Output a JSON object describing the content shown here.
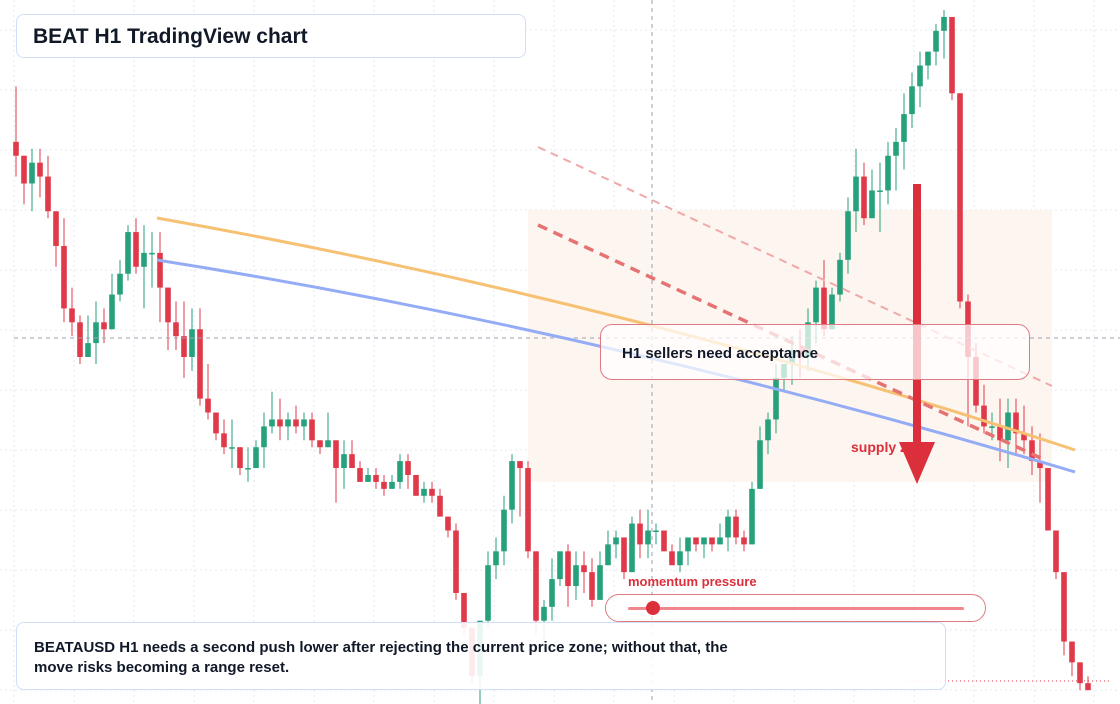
{
  "title": "BEAT H1 TradingView chart",
  "note": "BEATAUSD H1 needs a second push lower after rejecting the current price zone; without that, the move risks becoming a range reset.",
  "annotations": {
    "acceptance": "H1 sellers need acceptance",
    "supply": "supply zone",
    "momentum": "momentum pressure"
  },
  "momentum_level": 0.03,
  "colors": {
    "bull": "#26a17b",
    "bear": "#e03a4a",
    "ma_fast": "#f6c173",
    "ma_slow": "#94acf5",
    "alert": "#dc2f3c",
    "zone": "#fdf3ec",
    "grid": "#e3e7ef"
  },
  "icons": {
    "down_arrow": "arrow-down-icon"
  },
  "chart_data": {
    "type": "candlestick",
    "symbol": "BEATAUSD",
    "timeframe": "H1",
    "price_range": [
      0,
      100
    ],
    "candles": [
      [
        81,
        89,
        76,
        79
      ],
      [
        79,
        79,
        72,
        75
      ],
      [
        75,
        80,
        71,
        78
      ],
      [
        78,
        80,
        73,
        76
      ],
      [
        76,
        79,
        70,
        71
      ],
      [
        71,
        71,
        63,
        66
      ],
      [
        66,
        70,
        55,
        57
      ],
      [
        57,
        60,
        53,
        55
      ],
      [
        55,
        56,
        49,
        50
      ],
      [
        50,
        56,
        50,
        52
      ],
      [
        52,
        58,
        49,
        55
      ],
      [
        55,
        57,
        52,
        54
      ],
      [
        54,
        62,
        54,
        59
      ],
      [
        59,
        64,
        58,
        62
      ],
      [
        62,
        69,
        61,
        68
      ],
      [
        68,
        70,
        62,
        63
      ],
      [
        63,
        69,
        57,
        65
      ],
      [
        65,
        68,
        60,
        65
      ],
      [
        65,
        68,
        55,
        60
      ],
      [
        60,
        60,
        51,
        55
      ],
      [
        55,
        58,
        51,
        53
      ],
      [
        53,
        58,
        47,
        50
      ],
      [
        50,
        57,
        48,
        54
      ],
      [
        54,
        57,
        43,
        44
      ],
      [
        44,
        49,
        41,
        42
      ],
      [
        42,
        42,
        38,
        39
      ],
      [
        39,
        41,
        36,
        37
      ],
      [
        37,
        41,
        34,
        37
      ],
      [
        37,
        37,
        33,
        34
      ],
      [
        34,
        37,
        32,
        34
      ],
      [
        34,
        38,
        34,
        37
      ],
      [
        37,
        42,
        34,
        40
      ],
      [
        40,
        45,
        39,
        41
      ],
      [
        41,
        44,
        38,
        40
      ],
      [
        40,
        42,
        38,
        41
      ],
      [
        41,
        43,
        39,
        40
      ],
      [
        40,
        42,
        38,
        41
      ],
      [
        41,
        42,
        37,
        38
      ],
      [
        38,
        38,
        36,
        37
      ],
      [
        37,
        42,
        37,
        38
      ],
      [
        38,
        38,
        29,
        34
      ],
      [
        34,
        38,
        31,
        36
      ],
      [
        36,
        38,
        34,
        34
      ],
      [
        34,
        35,
        32,
        32
      ],
      [
        32,
        34,
        32,
        33
      ],
      [
        33,
        34,
        31,
        32
      ],
      [
        32,
        33,
        30,
        31
      ],
      [
        31,
        33,
        31,
        32
      ],
      [
        32,
        36,
        31,
        35
      ],
      [
        35,
        36,
        31,
        33
      ],
      [
        33,
        33,
        30,
        30
      ],
      [
        30,
        32,
        29,
        31
      ],
      [
        31,
        32,
        29,
        30
      ],
      [
        30,
        31,
        27,
        27
      ],
      [
        27,
        27,
        24,
        25
      ],
      [
        25,
        26,
        15,
        16
      ],
      [
        16,
        16,
        10,
        11
      ],
      [
        11,
        11,
        3,
        4
      ],
      [
        4,
        12,
        0,
        12
      ],
      [
        12,
        22,
        11,
        20
      ],
      [
        20,
        24,
        18,
        22
      ],
      [
        22,
        30,
        20,
        28
      ],
      [
        28,
        36,
        26,
        35
      ],
      [
        35,
        35,
        27,
        34
      ],
      [
        34,
        35,
        21,
        22
      ],
      [
        22,
        22,
        10,
        12
      ],
      [
        12,
        15,
        9,
        14
      ],
      [
        14,
        21,
        12,
        18
      ],
      [
        18,
        22,
        17,
        22
      ],
      [
        22,
        23,
        14,
        17
      ],
      [
        17,
        22,
        15,
        20
      ],
      [
        20,
        22,
        16,
        19
      ],
      [
        19,
        21,
        14,
        15
      ],
      [
        15,
        22,
        15,
        20
      ],
      [
        20,
        25,
        20,
        23
      ],
      [
        23,
        25,
        21,
        24
      ],
      [
        24,
        24,
        18,
        19
      ],
      [
        19,
        27,
        19,
        26
      ],
      [
        26,
        28,
        21,
        23
      ],
      [
        23,
        28,
        21,
        25
      ],
      [
        25,
        26,
        23,
        25
      ],
      [
        25,
        25,
        22,
        22
      ],
      [
        22,
        23,
        20,
        20
      ],
      [
        20,
        24,
        19,
        22
      ],
      [
        22,
        24,
        20,
        24
      ],
      [
        24,
        24,
        22,
        23
      ],
      [
        23,
        24,
        21,
        24
      ],
      [
        24,
        24,
        22,
        23
      ],
      [
        23,
        26,
        23,
        24
      ],
      [
        24,
        28,
        22,
        27
      ],
      [
        27,
        28,
        23,
        24
      ],
      [
        24,
        25,
        22,
        23
      ],
      [
        23,
        32,
        23,
        31
      ],
      [
        31,
        40,
        31,
        38
      ],
      [
        38,
        42,
        36,
        41
      ],
      [
        41,
        49,
        39,
        47
      ],
      [
        47,
        49,
        45,
        49
      ],
      [
        49,
        53,
        46,
        51
      ],
      [
        51,
        54,
        47,
        50
      ],
      [
        50,
        57,
        48,
        55
      ],
      [
        55,
        61,
        52,
        60
      ],
      [
        60,
        64,
        53,
        54
      ],
      [
        54,
        60,
        54,
        59
      ],
      [
        59,
        65,
        58,
        64
      ],
      [
        64,
        73,
        62,
        71
      ],
      [
        71,
        80,
        68,
        76
      ],
      [
        76,
        78,
        69,
        70
      ],
      [
        70,
        77,
        70,
        74
      ],
      [
        74,
        78,
        68,
        74
      ],
      [
        74,
        81,
        72,
        79
      ],
      [
        79,
        83,
        74,
        81
      ],
      [
        81,
        88,
        77,
        85
      ],
      [
        85,
        91,
        83,
        89
      ],
      [
        89,
        94,
        86,
        92
      ],
      [
        92,
        94,
        90,
        94
      ],
      [
        94,
        98,
        92,
        97
      ],
      [
        97,
        100,
        93,
        99
      ],
      [
        99,
        99,
        87,
        88
      ],
      [
        88,
        88,
        57,
        58
      ],
      [
        58,
        59,
        40,
        50
      ],
      [
        50,
        52,
        42,
        43
      ],
      [
        43,
        46,
        39,
        40
      ],
      [
        40,
        42,
        38,
        40
      ],
      [
        40,
        44,
        35,
        38
      ],
      [
        38,
        44,
        34,
        42
      ],
      [
        42,
        44,
        36,
        39
      ],
      [
        39,
        43,
        36,
        38
      ],
      [
        38,
        40,
        33,
        35
      ],
      [
        35,
        39,
        29,
        34
      ],
      [
        34,
        34,
        26,
        25
      ],
      [
        25,
        25,
        18,
        19
      ],
      [
        19,
        19,
        7,
        9
      ],
      [
        9,
        9,
        4,
        6
      ],
      [
        6,
        6,
        2,
        3
      ],
      [
        3,
        4,
        2,
        2
      ]
    ]
  }
}
